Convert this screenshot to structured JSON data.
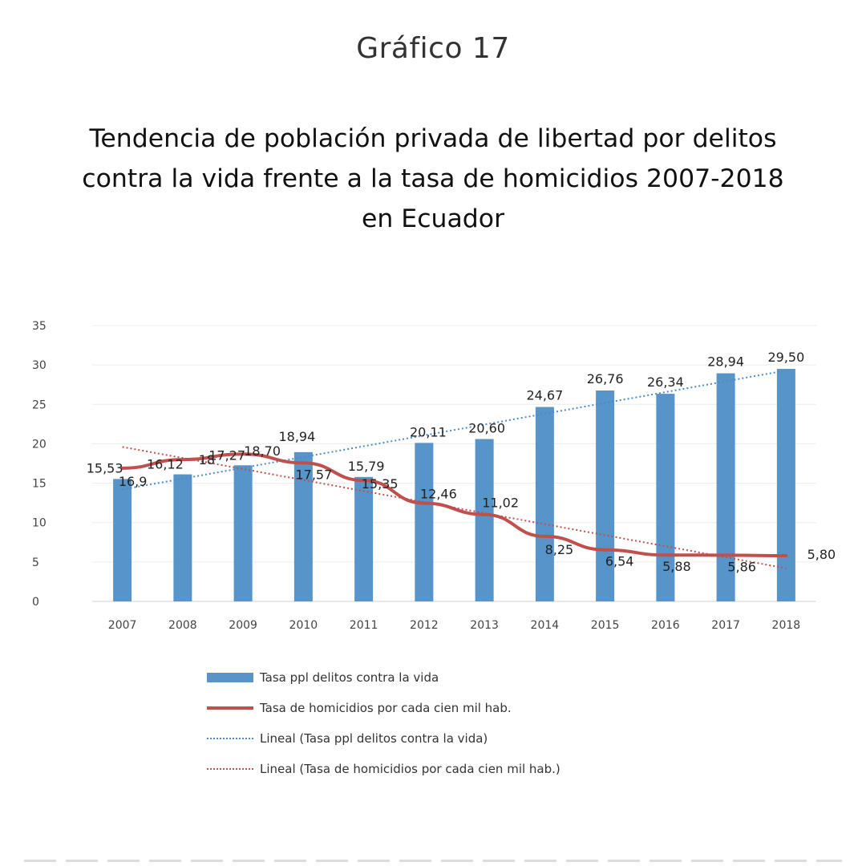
{
  "graphic_label": "Gráfico 17",
  "title": "Tendencia de población privada de libertad por delitos\ncontra la vida frente a la tasa de homicidios 2007-2018\nen Ecuador",
  "chart_data": {
    "type": "bar",
    "categories": [
      "2007",
      "2008",
      "2009",
      "2010",
      "2011",
      "2012",
      "2013",
      "2014",
      "2015",
      "2016",
      "2017",
      "2018"
    ],
    "series": [
      {
        "name": "Tasa ppl delitos contra la vida",
        "kind": "bar",
        "color": "#5694c9",
        "values": [
          15.53,
          16.12,
          17.27,
          18.94,
          15.79,
          20.11,
          20.6,
          24.67,
          26.76,
          26.34,
          28.94,
          29.5
        ],
        "labels": [
          "15,53",
          "16,12",
          "17,27",
          "18,94",
          "15,79",
          "20,11",
          "20,60",
          "24,67",
          "26,76",
          "26,34",
          "28,94",
          "29,50"
        ]
      },
      {
        "name": "Tasa de homicidios por cada cien mil hab.",
        "kind": "line",
        "color": "#c0504d",
        "values": [
          16.9,
          18,
          18.7,
          17.57,
          15.35,
          12.46,
          11.02,
          8.25,
          6.54,
          5.88,
          5.86,
          5.8
        ],
        "labels": [
          "16,9",
          "18",
          "18,70",
          "17,57",
          "15,35",
          "12,46",
          "11,02",
          "8,25",
          "6,54",
          "5,88",
          "5,86",
          "5,80"
        ]
      }
    ],
    "trendlines": [
      {
        "name": "Lineal (Tasa ppl delitos contra la vida)",
        "color": "#4a8bc8",
        "start": 14.2,
        "end": 29.3
      },
      {
        "name": "Lineal (Tasa de homicidios por cada cien mil hab.)",
        "color": "#c0504d",
        "start": 19.6,
        "end": 4.2
      }
    ],
    "yticks": [
      "0",
      "5",
      "10",
      "15",
      "20",
      "25",
      "30",
      "35"
    ],
    "ylim": [
      0,
      35
    ],
    "grid": true,
    "legend_position": "bottom",
    "xlabel": "",
    "ylabel": ""
  }
}
